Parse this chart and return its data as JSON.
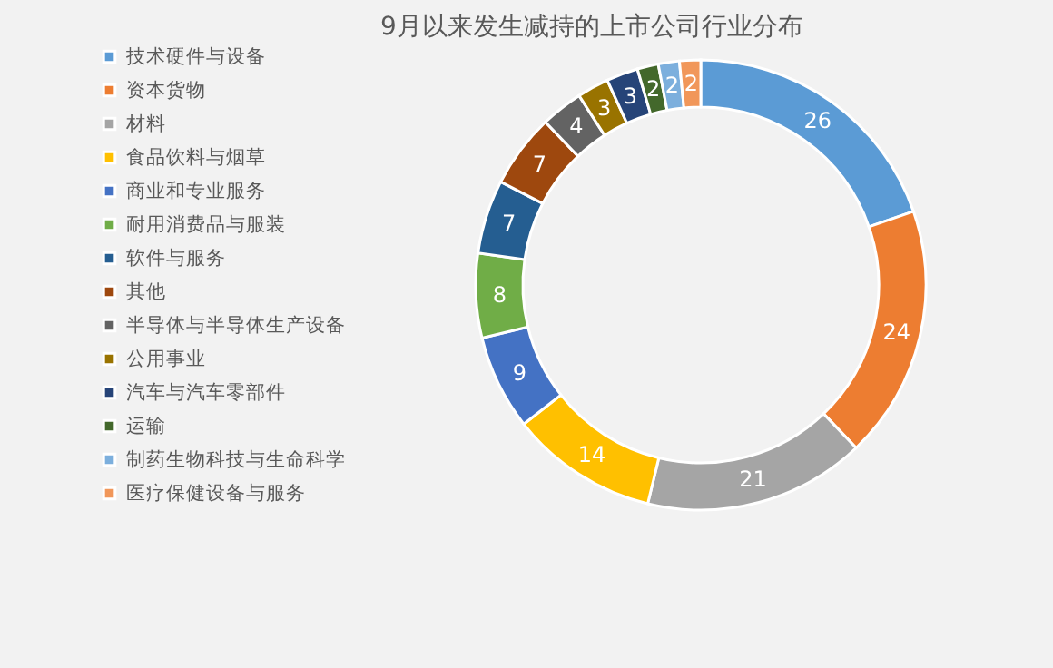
{
  "chart_data": {
    "type": "donut",
    "title": "9月以来发生减持的上市公司行业分布",
    "categories": [
      "技术硬件与设备",
      "资本货物",
      "材料",
      "食品饮料与烟草",
      "商业和专业服务",
      "耐用消费品与服装",
      "软件与服务",
      "其他",
      "半导体与半导体生产设备",
      "公用事业",
      "汽车与汽车零部件",
      "运输",
      "制药生物科技与生命科学",
      "医疗保健设备与服务"
    ],
    "values": [
      26,
      24,
      21,
      14,
      9,
      8,
      7,
      7,
      4,
      3,
      3,
      2,
      2,
      2
    ],
    "colors": [
      "#5b9bd5",
      "#ed7d31",
      "#a5a5a5",
      "#ffc000",
      "#4472c4",
      "#70ad47",
      "#255e91",
      "#9e480e",
      "#636363",
      "#997300",
      "#264478",
      "#43682b",
      "#7cafdd",
      "#f1975a"
    ],
    "data_labels": true,
    "legend": "left"
  }
}
